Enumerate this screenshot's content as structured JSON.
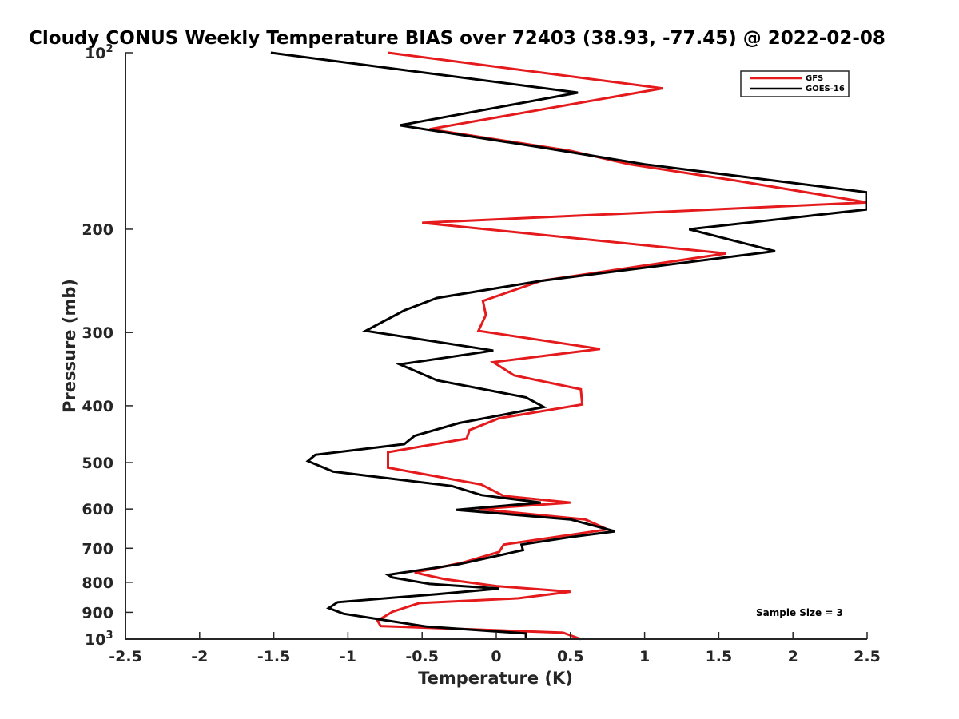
{
  "chart_data": {
    "type": "line",
    "title": "Cloudy CONUS Weekly Temperature BIAS over 72403 (38.93, -77.45) @ 2022-02-08",
    "xlabel": "Temperature (K)",
    "ylabel": "Pressure (mb)",
    "xlim": [
      -2.5,
      2.5
    ],
    "ylim": [
      1000,
      100
    ],
    "y_scale": "log",
    "y_reversed": true,
    "grid": false,
    "x_ticks": [
      "-2.5",
      "-2",
      "-1.5",
      "-1",
      "-0.5",
      "0",
      "0.5",
      "1",
      "1.5",
      "2",
      "2.5"
    ],
    "y_ticks": [
      {
        "value": 100,
        "label": "10",
        "sup": "2"
      },
      {
        "value": 200,
        "label": "200",
        "sup": ""
      },
      {
        "value": 300,
        "label": "300",
        "sup": ""
      },
      {
        "value": 400,
        "label": "400",
        "sup": ""
      },
      {
        "value": 500,
        "label": "500",
        "sup": ""
      },
      {
        "value": 600,
        "label": "600",
        "sup": ""
      },
      {
        "value": 700,
        "label": "700",
        "sup": ""
      },
      {
        "value": 800,
        "label": "800",
        "sup": ""
      },
      {
        "value": 900,
        "label": "900",
        "sup": ""
      },
      {
        "value": 1000,
        "label": "10",
        "sup": "3"
      }
    ],
    "legend": {
      "placement": "top-right"
    },
    "annotation": "Sample Size = 3",
    "series": [
      {
        "name": "GFS",
        "color": "#e41a1c",
        "points": [
          [
            -0.73,
            100
          ],
          [
            1.12,
            115
          ],
          [
            -0.45,
            135
          ],
          [
            0.5,
            147
          ],
          [
            0.9,
            155
          ],
          [
            1.6,
            165
          ],
          [
            2.5,
            180
          ],
          [
            -0.5,
            195
          ],
          [
            1.55,
            220
          ],
          [
            0.3,
            245
          ],
          [
            -0.09,
            265
          ],
          [
            -0.07,
            280
          ],
          [
            -0.12,
            298
          ],
          [
            0.7,
            320
          ],
          [
            -0.02,
            337
          ],
          [
            0.12,
            355
          ],
          [
            0.57,
            375
          ],
          [
            0.58,
            398
          ],
          [
            0.02,
            420
          ],
          [
            -0.18,
            440
          ],
          [
            -0.2,
            455
          ],
          [
            -0.73,
            480
          ],
          [
            -0.73,
            510
          ],
          [
            -0.1,
            545
          ],
          [
            0.05,
            570
          ],
          [
            0.5,
            585
          ],
          [
            -0.12,
            600
          ],
          [
            0.6,
            625
          ],
          [
            0.75,
            650
          ],
          [
            0.05,
            690
          ],
          [
            0.02,
            710
          ],
          [
            -0.22,
            740
          ],
          [
            -0.55,
            770
          ],
          [
            -0.35,
            790
          ],
          [
            0.0,
            812
          ],
          [
            0.5,
            830
          ],
          [
            0.15,
            852
          ],
          [
            -0.52,
            868
          ],
          [
            -0.7,
            898
          ],
          [
            -0.8,
            930
          ],
          [
            -0.78,
            950
          ],
          [
            0.45,
            975
          ],
          [
            0.57,
            1000
          ]
        ]
      },
      {
        "name": "GOES-16",
        "color": "#000000",
        "points": [
          [
            -1.52,
            100
          ],
          [
            0.55,
            117
          ],
          [
            -0.65,
            133
          ],
          [
            0.3,
            145
          ],
          [
            1.0,
            155
          ],
          [
            2.5,
            173
          ],
          [
            2.5,
            185
          ],
          [
            1.3,
            200
          ],
          [
            1.88,
            218
          ],
          [
            0.3,
            245
          ],
          [
            -0.4,
            262
          ],
          [
            -0.62,
            275
          ],
          [
            -0.88,
            298
          ],
          [
            -0.02,
            322
          ],
          [
            -0.65,
            340
          ],
          [
            -0.4,
            362
          ],
          [
            0.2,
            387
          ],
          [
            0.32,
            402
          ],
          [
            -0.25,
            428
          ],
          [
            -0.55,
            450
          ],
          [
            -0.62,
            465
          ],
          [
            -1.22,
            485
          ],
          [
            -1.27,
            497
          ],
          [
            -1.1,
            518
          ],
          [
            -0.3,
            548
          ],
          [
            -0.1,
            568
          ],
          [
            0.3,
            585
          ],
          [
            -0.27,
            602
          ],
          [
            0.5,
            625
          ],
          [
            0.8,
            655
          ],
          [
            0.5,
            670
          ],
          [
            0.17,
            690
          ],
          [
            0.18,
            705
          ],
          [
            -0.25,
            745
          ],
          [
            -0.73,
            777
          ],
          [
            -0.7,
            785
          ],
          [
            -0.45,
            805
          ],
          [
            0.02,
            820
          ],
          [
            -0.4,
            838
          ],
          [
            -1.07,
            865
          ],
          [
            -1.13,
            885
          ],
          [
            -1.03,
            905
          ],
          [
            -0.73,
            930
          ],
          [
            -0.47,
            952
          ],
          [
            0.2,
            978
          ],
          [
            0.2,
            1000
          ]
        ]
      }
    ]
  }
}
